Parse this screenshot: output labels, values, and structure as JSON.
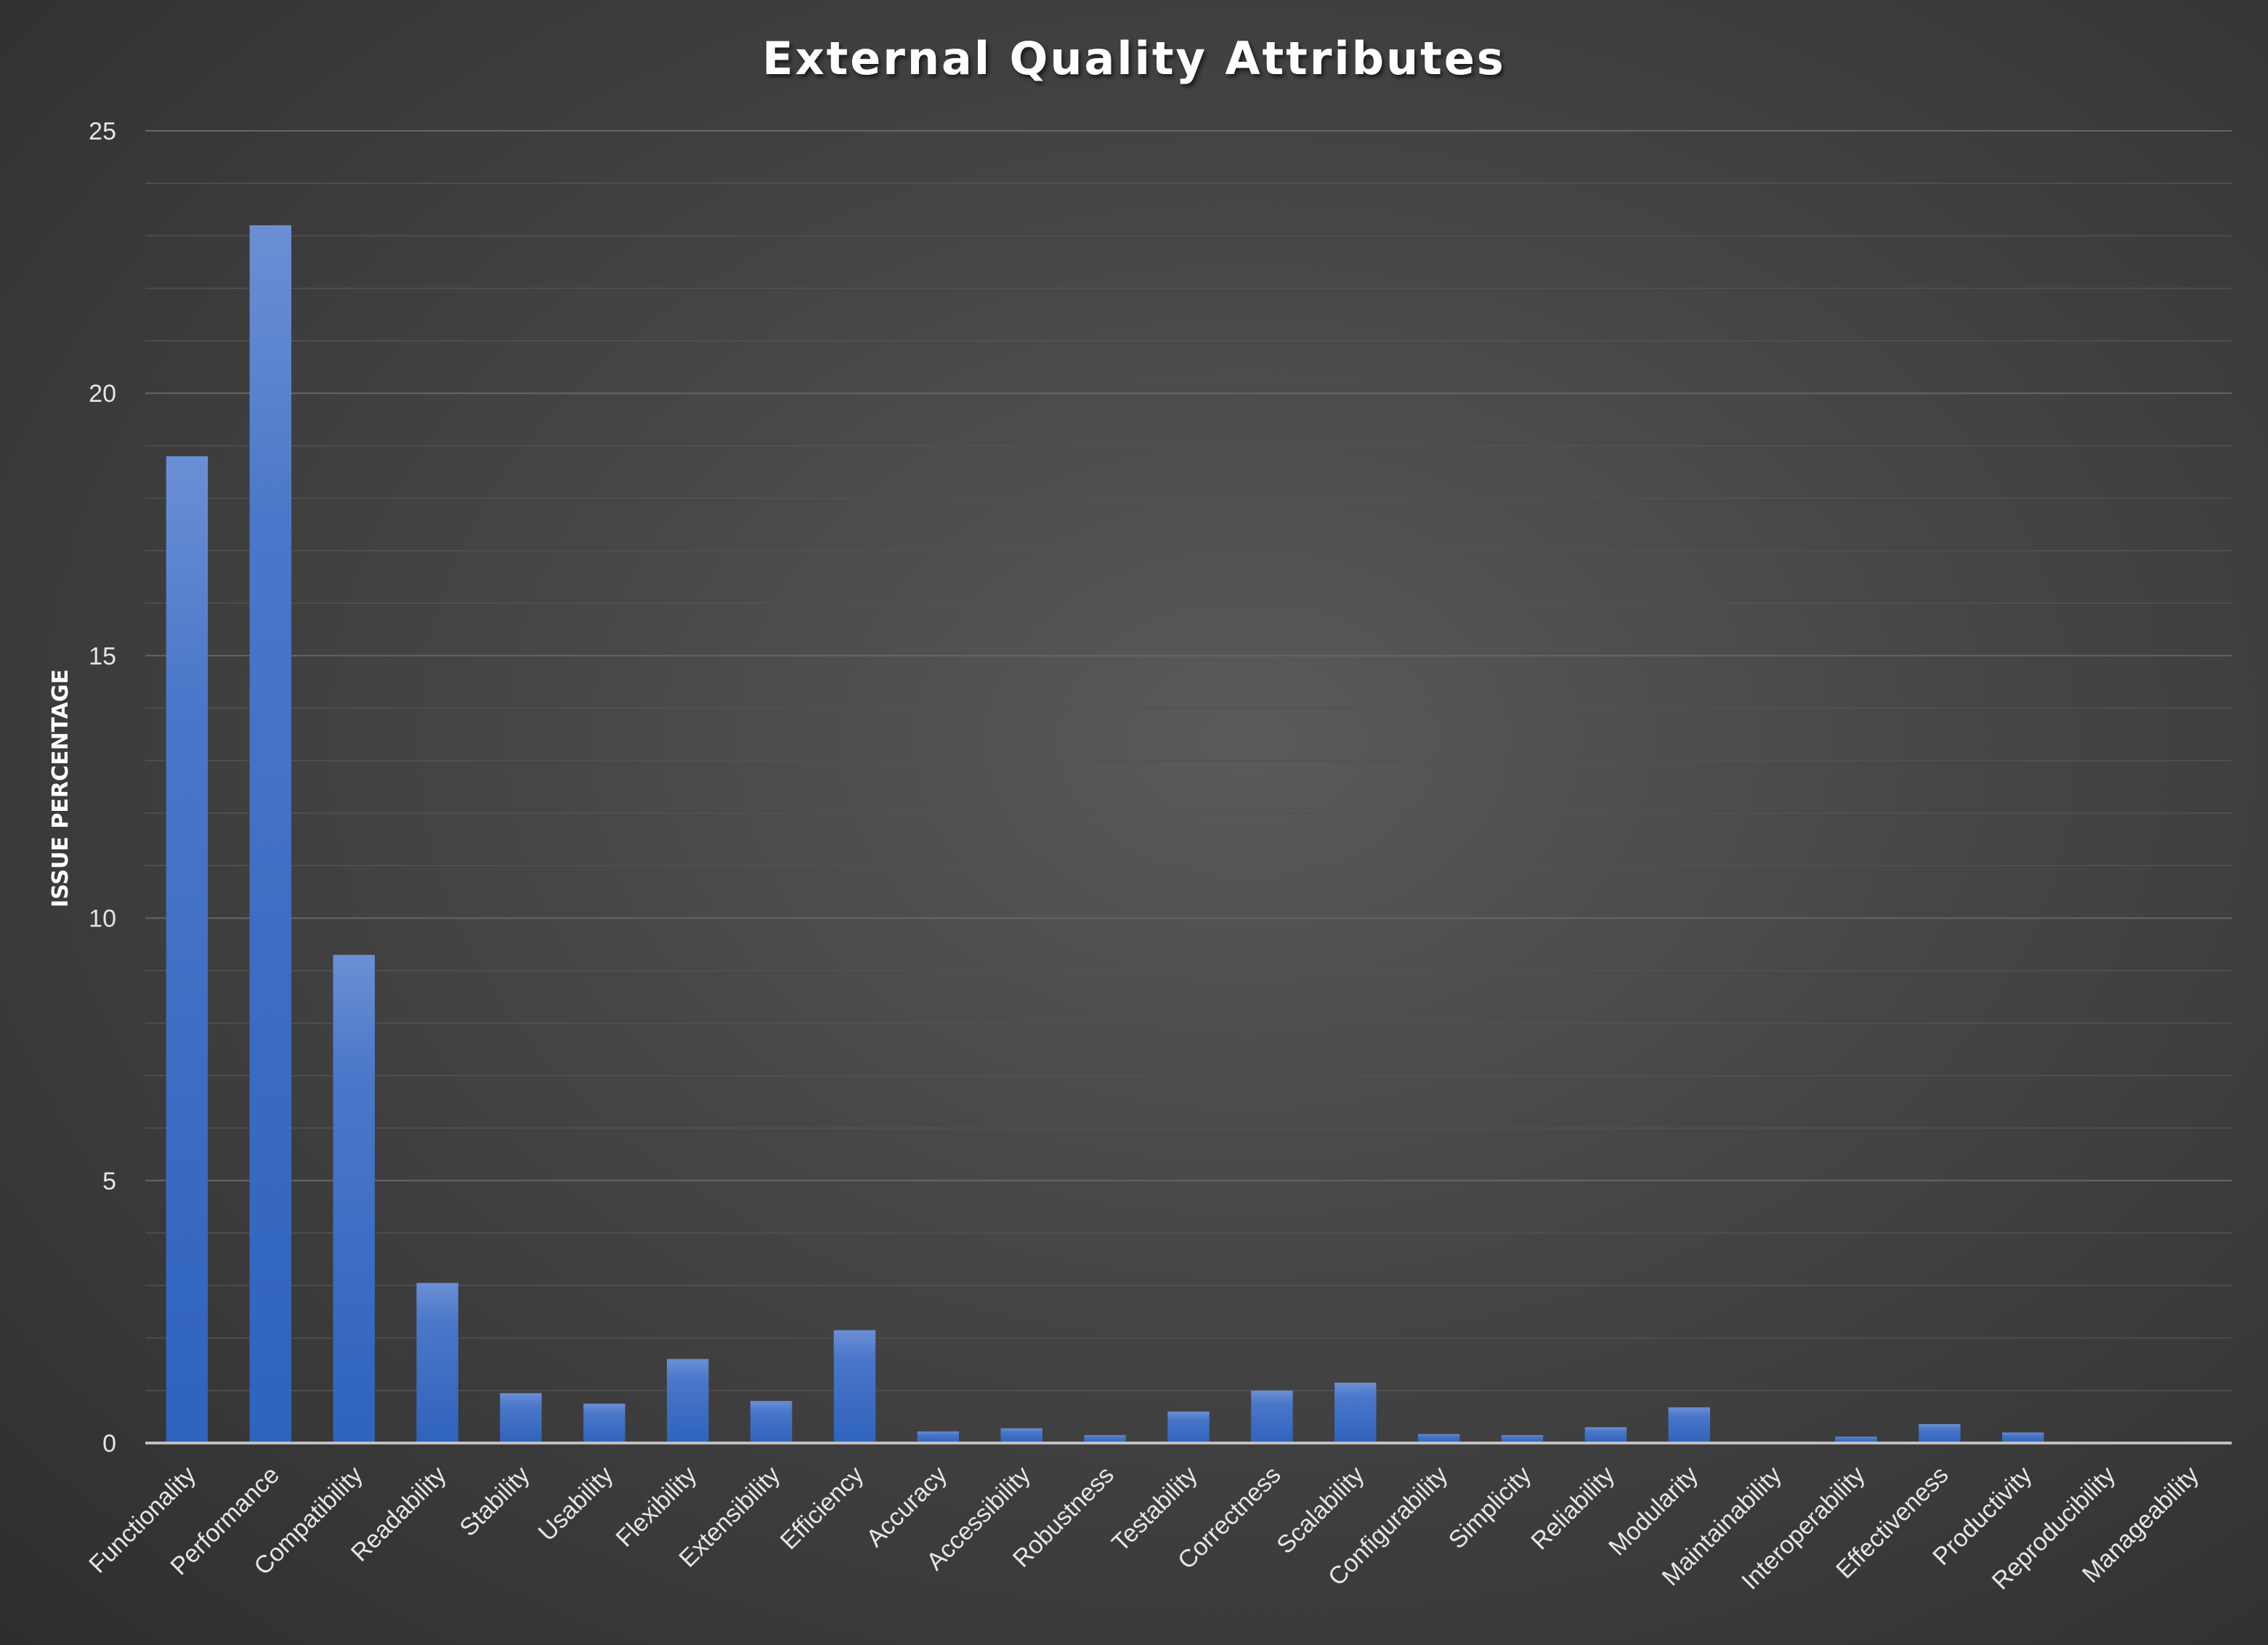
{
  "chart_data": {
    "type": "bar",
    "title": "External Quality Attributes",
    "xlabel": "",
    "ylabel": "ISSUE PERCENTAGE",
    "ylim": [
      0,
      25
    ],
    "yticks": [
      0,
      5,
      10,
      15,
      20,
      25
    ],
    "grid": true,
    "legend": "none",
    "categories": [
      "Functionality",
      "Performance",
      "Compatibility",
      "Readability",
      "Stability",
      "Usability",
      "Flexibility",
      "Extensibility",
      "Efficiency",
      "Accuracy",
      "Accessibility",
      "Robustness",
      "Testability",
      "Correctness",
      "Scalability",
      "Configurability",
      "Simplicity",
      "Reliability",
      "Modularity",
      "Maintainability",
      "Interoperability",
      "Effectiveness",
      "Productivity",
      "Reproducibility",
      "Manageability"
    ],
    "values": [
      18.8,
      23.2,
      9.3,
      3.05,
      0.95,
      0.75,
      1.6,
      0.8,
      2.15,
      0.22,
      0.28,
      0.15,
      0.6,
      1.0,
      1.15,
      0.17,
      0.15,
      0.3,
      0.68,
      0,
      0.12,
      0.36,
      0.2,
      0,
      0
    ],
    "colors": {
      "bar": "#4472c4",
      "bar_top": "#6b8fd4",
      "grid": "#5c5c5c",
      "axis": "#bfbfbf",
      "text": "#ffffff"
    }
  }
}
